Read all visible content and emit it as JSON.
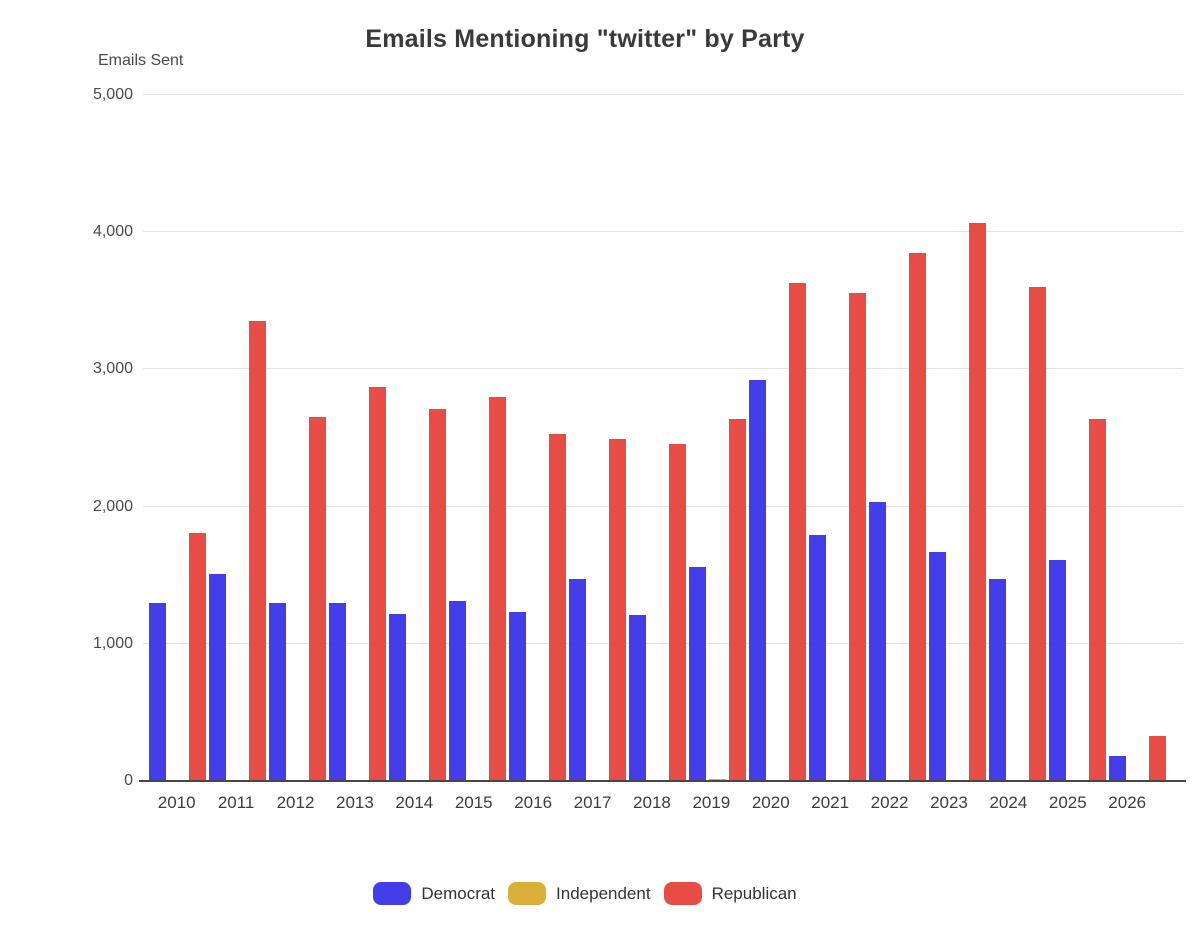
{
  "title": "Emails Mentioning \"twitter\" by Party",
  "y_axis_unit": "Emails Sent",
  "colors": {
    "democrat": "#433EE9",
    "independent": "#DCAF3B",
    "republican": "#E74D45",
    "grid": "#E4E4E8",
    "axis": "#474747",
    "title_text": "#3A3A3A",
    "tick_text": "#4B4B4B"
  },
  "legend": [
    {
      "label": "Democrat",
      "color": "#433EE9"
    },
    {
      "label": "Independent",
      "color": "#DCAF3B"
    },
    {
      "label": "Republican",
      "color": "#E74D45"
    }
  ],
  "chart_data": {
    "type": "bar",
    "title": "Emails Mentioning \"twitter\" by Party",
    "xlabel": "",
    "ylabel": "Emails Sent",
    "ylim": [
      0,
      5000
    ],
    "yticks": [
      0,
      1000,
      2000,
      3000,
      4000,
      5000
    ],
    "ytick_labels": [
      "0",
      "1,000",
      "2,000",
      "3,000",
      "4,000",
      "5,000"
    ],
    "grid": true,
    "legend_position": "bottom",
    "categories": [
      "2010",
      "2011",
      "2012",
      "2013",
      "2014",
      "2015",
      "2016",
      "2017",
      "2018",
      "2019",
      "2020",
      "2021",
      "2022",
      "2023",
      "2024",
      "2025",
      "2026"
    ],
    "series": [
      {
        "name": "Democrat",
        "color": "#433EE9",
        "values": [
          1300,
          1510,
          1300,
          1300,
          1220,
          1310,
          1230,
          1470,
          1210,
          1560,
          2920,
          1790,
          2030,
          1670,
          1470,
          1610,
          180
        ]
      },
      {
        "name": "Independent",
        "color": "#DCAF3B",
        "values": [
          0,
          0,
          0,
          0,
          0,
          0,
          0,
          0,
          0,
          15,
          0,
          0,
          0,
          0,
          0,
          0,
          0
        ]
      },
      {
        "name": "Republican",
        "color": "#E74D45",
        "values": [
          1810,
          3350,
          2650,
          2870,
          2710,
          2800,
          2530,
          2490,
          2460,
          2640,
          3630,
          3560,
          3850,
          4070,
          3600,
          2640,
          330
        ]
      }
    ]
  }
}
